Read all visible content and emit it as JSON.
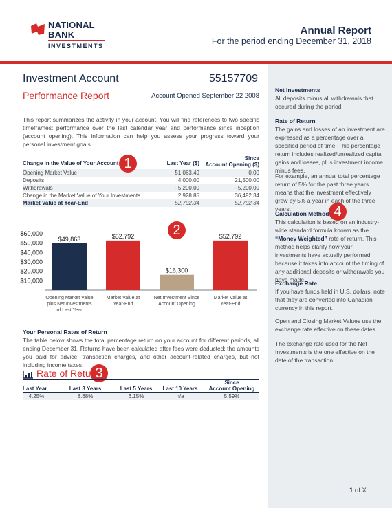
{
  "header": {
    "logo_line1": "NATIONAL",
    "logo_line2": "BANK",
    "logo_line3": "INVESTMENTS",
    "report_title": "Annual Report",
    "report_period": "For the period ending December 31, 2018"
  },
  "account": {
    "name": "Investment Account",
    "number": "55157709",
    "section_title": "Performance Report",
    "opened": "Account Opened September 22 2008"
  },
  "intro": "This report summarizes the activity in your account. You will find references to two specific timeframes: performance over the last calendar year and performance since inception (account opening). This information can help you assess your progress toward your personal investment goals.",
  "value_table": {
    "col_label": "Change in the Value of Your Account",
    "col_last_year": "Last Year ($)",
    "col_since_1": "Since",
    "col_since_2": "Account Opening ($)",
    "rows": [
      {
        "label": "Opening Market Value",
        "last_year": "51,063.49",
        "since": "0.00"
      },
      {
        "label": "Deposits",
        "last_year": "4,000.00",
        "since": "21,500.00"
      },
      {
        "label": "Withdrawals",
        "last_year": "- 5,200.00",
        "since": "- 5,200.00"
      },
      {
        "label": "Change in the Market Value of Your Investments",
        "last_year": "2,928.85",
        "since": "36,492.34"
      }
    ],
    "total": {
      "label": "Market Value at Year-End",
      "last_year": "52,792.34",
      "since": "52,792.34"
    }
  },
  "callouts": {
    "c1": "1",
    "c2": "2",
    "c3": "3",
    "c4": "4"
  },
  "chart_data": {
    "type": "bar",
    "categories": [
      "Opening Market Value plus Net Investments of Last Year",
      "Market Value at Year-End",
      "Net Investment Since Account Opening",
      "Market Value at Year-End"
    ],
    "category_lines": [
      [
        "Opening Market Value",
        "plus Net Investments",
        "of Last Year"
      ],
      [
        "Market Value at",
        "Year-End"
      ],
      [
        "Net Investment Since",
        "Account Opening"
      ],
      [
        "Market Value at",
        "Year-End"
      ]
    ],
    "values": [
      49863,
      52792,
      16300,
      52792
    ],
    "value_labels": [
      "$49,863",
      "$52,792",
      "$16,300",
      "$52,792"
    ],
    "colors": [
      "#1c2f4d",
      "#d52b2b",
      "#b9a286",
      "#d52b2b"
    ],
    "ylim": [
      0,
      60000
    ],
    "yticks": [
      10000,
      20000,
      30000,
      40000,
      50000,
      60000
    ],
    "ytick_labels": [
      "$10,000",
      "$20,000",
      "$30,000",
      "$40,000",
      "$50,000",
      "$60,000"
    ],
    "grid": false,
    "title": "",
    "xlabel": "",
    "ylabel": ""
  },
  "rates": {
    "title": "Your Personal Rates of Return",
    "body": "The table below shows the total percentage return on your account for different periods, all ending December 31. Returns have been calculated after fees were deducted: the amounts you paid for advice, transaction charges, and other account-related charges, but not including income taxes."
  },
  "ror_table": {
    "title": "Rate of Return",
    "headers": [
      "Last Year",
      "Last 3 Years",
      "Last 5 Years",
      "Last 10 Years",
      "Since",
      "Account Opening"
    ],
    "values": [
      "4.25%",
      "8.68%",
      "6.15%",
      "n/a",
      "5.59%"
    ]
  },
  "sidebar": {
    "net_title": "Net Investments",
    "net_body": "All deposits minus all withdrawals that occured during the period.",
    "ror_title": "Rate of Return",
    "ror_body": "The gains and losses of an investment are expressed as a percentage over a specified period of time. This percentage return includes realized/unrealized capital gains and losses, plus investment income minus fees.",
    "ror_example": "For example, an annual total percentage return of 5% for the past three years means that the investment effectively grew by 5% a year in each of the three years.",
    "calc_title": "Calculation Method",
    "calc_body_pre": "This calculation is based on an industry-wide standard formula known as the ",
    "calc_body_bold": "“Money Weighted”",
    "calc_body_post": " rate of return. This method helps clarify how your investments have actually performed, because it takes into account the timing of any additional deposits or withdrawals you have made.",
    "fx_title": "Exchange Rate",
    "fx_body": "If you have funds held in U.S. dollars, note that they are converted into Canadian currency in this report.",
    "fx_body2": "Open and Closing Market Values use the exchange rate effective on these dates.",
    "fx_body3": "The exchange rate used for the Net Investments is the one effective on the date of the transaction."
  },
  "footer": {
    "page_current": "1",
    "page_suffix": " of X"
  }
}
